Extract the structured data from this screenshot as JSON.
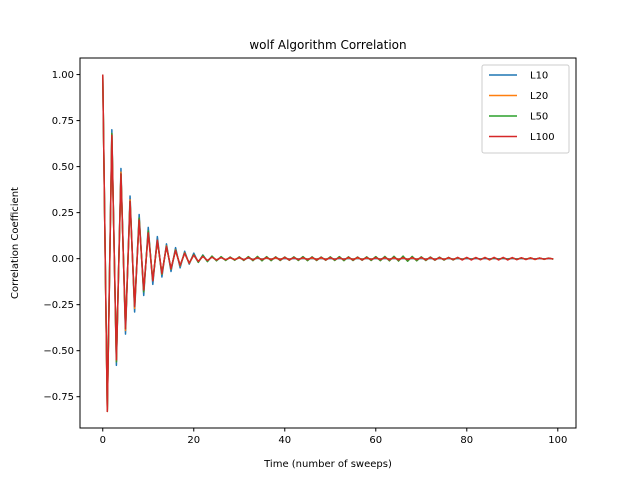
{
  "chart_data": {
    "type": "line",
    "title": "wolf Algorithm Correlation",
    "xlabel": "Time (number of sweeps)",
    "ylabel": "Correlation Coefficient",
    "xlim": [
      -5,
      104
    ],
    "ylim": [
      -0.92,
      1.09
    ],
    "xticks": [
      0,
      20,
      40,
      60,
      80,
      100
    ],
    "xtick_labels": [
      "0",
      "20",
      "40",
      "60",
      "80",
      "100"
    ],
    "yticks": [
      -0.75,
      -0.5,
      -0.25,
      0.0,
      0.25,
      0.5,
      0.75,
      1.0
    ],
    "ytick_labels": [
      "−0.75",
      "−0.50",
      "−0.25",
      "0.00",
      "0.25",
      "0.50",
      "0.75",
      "1.00"
    ],
    "grid": false,
    "legend_position": "top-right",
    "x": [
      0,
      1,
      2,
      3,
      4,
      5,
      6,
      7,
      8,
      9,
      10,
      11,
      12,
      13,
      14,
      15,
      16,
      17,
      18,
      19,
      20,
      21,
      22,
      23,
      24,
      25,
      26,
      27,
      28,
      29,
      30,
      31,
      32,
      33,
      34,
      35,
      36,
      37,
      38,
      39,
      40,
      41,
      42,
      43,
      44,
      45,
      46,
      47,
      48,
      49,
      50,
      51,
      52,
      53,
      54,
      55,
      56,
      57,
      58,
      59,
      60,
      61,
      62,
      63,
      64,
      65,
      66,
      67,
      68,
      69,
      70,
      71,
      72,
      73,
      74,
      75,
      76,
      77,
      78,
      79,
      80,
      81,
      82,
      83,
      84,
      85,
      86,
      87,
      88,
      89,
      90,
      91,
      92,
      93,
      94,
      95,
      96,
      97,
      98,
      99
    ],
    "series": [
      {
        "name": "L10",
        "color": "#1f77b4",
        "values": [
          1.0,
          -0.82,
          0.7,
          -0.58,
          0.49,
          -0.41,
          0.34,
          -0.29,
          0.24,
          -0.2,
          0.17,
          -0.14,
          0.12,
          -0.1,
          0.08,
          -0.07,
          0.06,
          -0.05,
          0.04,
          -0.03,
          0.03,
          -0.02,
          0.02,
          -0.015,
          0.012,
          -0.01,
          0.008,
          -0.007,
          0.006,
          -0.005,
          0.004,
          -0.004,
          0.003,
          -0.003,
          0.002,
          -0.002,
          0.002,
          -0.002,
          0.002,
          -0.001,
          0.001,
          -0.001,
          0.001,
          -0.001,
          0.001,
          -0.001,
          0.001,
          -0.001,
          0.001,
          -0.001,
          0.001,
          -0.001,
          0.001,
          -0.001,
          0.001,
          -0.001,
          0.001,
          -0.001,
          0.001,
          -0.001,
          0.001,
          -0.001,
          0.001,
          -0.001,
          0.001,
          -0.001,
          0.001,
          -0.001,
          0.001,
          -0.001,
          0.001,
          -0.001,
          0.001,
          -0.001,
          0.001,
          -0.001,
          0.001,
          -0.001,
          0.001,
          -0.001,
          0.001,
          -0.001,
          0.001,
          -0.001,
          0.001,
          -0.001,
          0.001,
          -0.001,
          0.001,
          -0.001,
          0.001,
          -0.001,
          0.001,
          -0.001,
          0.001,
          -0.001,
          0.001,
          -0.001,
          0.001,
          -0.001
        ]
      },
      {
        "name": "L20",
        "color": "#ff7f0e",
        "values": [
          1.0,
          -0.83,
          0.68,
          -0.56,
          0.47,
          -0.39,
          0.32,
          -0.27,
          0.22,
          -0.18,
          0.15,
          -0.12,
          0.1,
          -0.085,
          0.07,
          -0.058,
          0.048,
          -0.04,
          0.032,
          -0.026,
          0.021,
          -0.017,
          0.014,
          -0.011,
          0.009,
          -0.007,
          0.006,
          -0.005,
          0.004,
          -0.004,
          0.004,
          -0.005,
          0.005,
          -0.005,
          0.004,
          -0.004,
          0.003,
          -0.003,
          0.003,
          -0.003,
          0.004,
          -0.004,
          0.004,
          -0.004,
          0.003,
          -0.003,
          0.003,
          -0.003,
          0.003,
          -0.003,
          0.004,
          -0.004,
          0.004,
          -0.004,
          0.003,
          -0.003,
          0.003,
          -0.003,
          0.003,
          -0.003,
          0.004,
          -0.004,
          0.004,
          -0.004,
          0.003,
          -0.003,
          0.003,
          -0.003,
          0.003,
          -0.003,
          0.004,
          -0.004,
          0.004,
          -0.004,
          0.003,
          -0.003,
          0.003,
          -0.003,
          0.004,
          -0.004,
          0.005,
          -0.005,
          0.006,
          -0.006,
          0.007,
          -0.007,
          0.006,
          -0.006,
          0.005,
          -0.005,
          0.004,
          -0.004,
          0.004,
          -0.004,
          0.005,
          -0.005,
          0.004,
          -0.004,
          0.003,
          -0.002
        ]
      },
      {
        "name": "L50",
        "color": "#2ca02c",
        "values": [
          1.0,
          -0.83,
          0.68,
          -0.56,
          0.46,
          -0.38,
          0.31,
          -0.26,
          0.22,
          -0.18,
          0.15,
          -0.12,
          0.1,
          -0.083,
          0.068,
          -0.056,
          0.046,
          -0.038,
          0.031,
          -0.025,
          0.022,
          -0.02,
          0.018,
          -0.016,
          0.014,
          -0.012,
          0.011,
          -0.01,
          0.009,
          -0.009,
          0.01,
          -0.01,
          0.011,
          -0.011,
          0.012,
          -0.012,
          0.011,
          -0.011,
          0.01,
          -0.01,
          0.009,
          -0.009,
          0.01,
          -0.01,
          0.011,
          -0.011,
          0.01,
          -0.01,
          0.009,
          -0.009,
          0.01,
          -0.01,
          0.011,
          -0.011,
          0.01,
          -0.01,
          0.009,
          -0.009,
          0.01,
          -0.01,
          0.011,
          -0.011,
          0.012,
          -0.012,
          0.013,
          -0.013,
          0.014,
          -0.014,
          0.012,
          -0.012,
          0.01,
          -0.01,
          0.009,
          -0.009,
          0.008,
          -0.008,
          0.007,
          -0.007,
          0.006,
          -0.006,
          0.005,
          -0.005,
          0.005,
          -0.005,
          0.005,
          -0.005,
          0.004,
          -0.004,
          0.004,
          -0.004,
          0.004,
          -0.004,
          0.003,
          -0.003,
          0.003,
          -0.003,
          0.003,
          -0.003,
          0.003,
          -0.003
        ]
      },
      {
        "name": "L100",
        "color": "#d62728",
        "values": [
          1.0,
          -0.83,
          0.67,
          -0.55,
          0.46,
          -0.38,
          0.31,
          -0.26,
          0.21,
          -0.17,
          0.14,
          -0.12,
          0.1,
          -0.08,
          0.066,
          -0.054,
          0.044,
          -0.036,
          0.029,
          -0.024,
          0.019,
          -0.015,
          0.012,
          -0.01,
          0.008,
          -0.007,
          0.006,
          -0.006,
          0.006,
          -0.006,
          0.007,
          -0.007,
          0.007,
          -0.007,
          0.006,
          -0.006,
          0.006,
          -0.006,
          0.007,
          -0.007,
          0.007,
          -0.007,
          0.006,
          -0.006,
          0.006,
          -0.006,
          0.007,
          -0.007,
          0.007,
          -0.007,
          0.006,
          -0.006,
          0.006,
          -0.006,
          0.007,
          -0.007,
          0.007,
          -0.007,
          0.006,
          -0.006,
          0.006,
          -0.006,
          0.007,
          -0.007,
          0.007,
          -0.007,
          0.006,
          -0.006,
          0.006,
          -0.006,
          0.007,
          -0.007,
          0.007,
          -0.007,
          0.006,
          -0.006,
          0.006,
          -0.006,
          0.007,
          -0.007,
          0.007,
          -0.007,
          0.006,
          -0.006,
          0.006,
          -0.006,
          0.007,
          -0.007,
          0.007,
          -0.007,
          0.006,
          -0.006,
          0.005,
          -0.005,
          0.004,
          -0.004,
          0.003,
          -0.003,
          0.002,
          -0.002
        ]
      }
    ]
  }
}
